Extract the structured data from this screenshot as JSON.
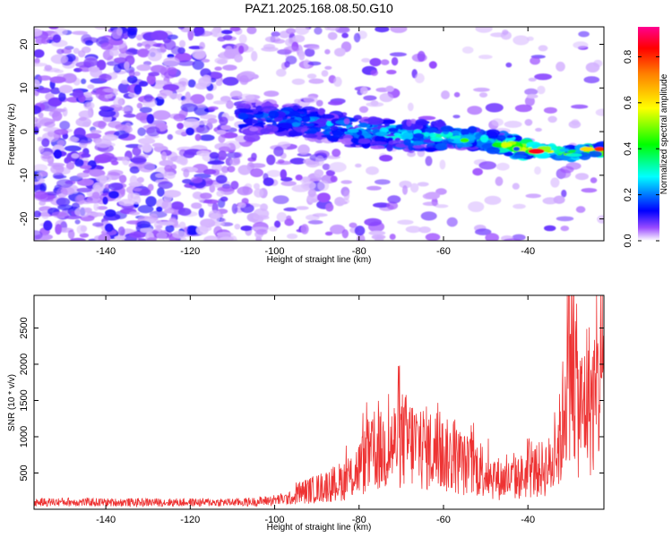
{
  "figure": {
    "title": "PAZ1.2025.168.08.50.G10"
  },
  "chart_data": [
    {
      "type": "heatmap",
      "title": "PAZ1.2025.168.08.50.G10",
      "xlabel": "Height of straight line (km)",
      "ylabel": "Frequency (Hz)",
      "xlim": [
        -157,
        -22
      ],
      "ylim": [
        -25,
        24
      ],
      "xticks": [
        -140,
        -120,
        -100,
        -80,
        -60,
        -40
      ],
      "yticks": [
        -20,
        -10,
        0,
        10,
        20
      ],
      "colorbar": {
        "label": "Normalized spectral amplitude",
        "range": [
          0,
          0.93
        ],
        "ticks": [
          0.0,
          0.2,
          0.4,
          0.6,
          0.8
        ],
        "colormap": [
          "#ffffff",
          "#7a00ff",
          "#0000ff",
          "#00ffff",
          "#00ff00",
          "#ffff00",
          "#ff7f00",
          "#ff0000",
          "#ff0080"
        ]
      },
      "signal_ridge": {
        "description_points_x": [
          -107,
          -100,
          -90,
          -80,
          -70,
          -60,
          -50,
          -40,
          -30,
          -22
        ],
        "frequency_hz": [
          3,
          3,
          2,
          0,
          -1,
          -1,
          -2,
          -4,
          -5,
          -4
        ],
        "peak_amplitude": [
          0.2,
          0.25,
          0.3,
          0.3,
          0.35,
          0.35,
          0.45,
          0.75,
          0.55,
          0.8
        ]
      },
      "grid": false
    },
    {
      "type": "line",
      "xlabel": "Height of straight line (km)",
      "ylabel": "SNR (10 * v/v)",
      "xlim": [
        -157,
        -22
      ],
      "ylim": [
        0,
        2950
      ],
      "xticks": [
        -140,
        -120,
        -100,
        -80,
        -60,
        -40
      ],
      "yticks": [
        500,
        1000,
        1500,
        2000,
        2500
      ],
      "color": "#ee3333",
      "series": [
        {
          "x": [
            -157,
            -150,
            -140,
            -130,
            -120,
            -110,
            -105,
            -100,
            -95,
            -90,
            -85,
            -82,
            -80,
            -78,
            -75,
            -72,
            -70,
            -68,
            -66,
            -64,
            -62,
            -60,
            -58,
            -55,
            -52,
            -50,
            -48,
            -45,
            -42,
            -40,
            -38,
            -36,
            -34,
            -32,
            -31,
            -30,
            -29,
            -28,
            -27,
            -26,
            -25,
            -24,
            -23,
            -22
          ],
          "y": [
            150,
            160,
            150,
            150,
            150,
            150,
            160,
            200,
            250,
            320,
            420,
            500,
            650,
            800,
            900,
            1000,
            1100,
            1050,
            1000,
            950,
            900,
            850,
            800,
            700,
            650,
            600,
            500,
            450,
            500,
            550,
            600,
            650,
            700,
            1200,
            2000,
            2700,
            2200,
            1600,
            1500,
            1800,
            1700,
            1600,
            2000,
            2600
          ]
        }
      ],
      "grid": false
    }
  ]
}
